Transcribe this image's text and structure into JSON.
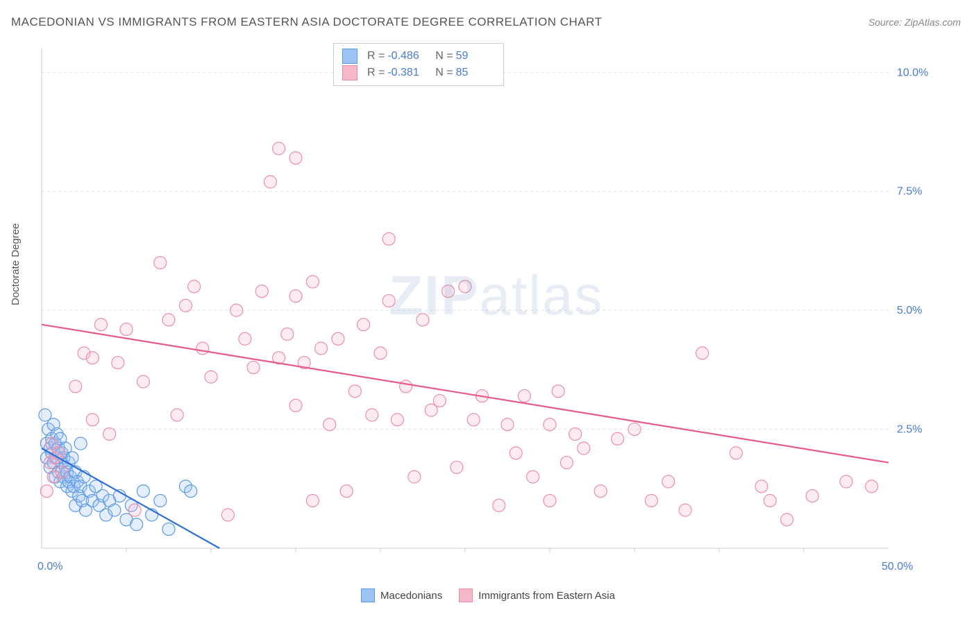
{
  "title": "MACEDONIAN VS IMMIGRANTS FROM EASTERN ASIA DOCTORATE DEGREE CORRELATION CHART",
  "source_label": "Source: ZipAtlas.com",
  "y_axis_label": "Doctorate Degree",
  "watermark": "ZIPatlas",
  "chart": {
    "type": "scatter",
    "xlim": [
      0,
      50
    ],
    "ylim": [
      0,
      10.5
    ],
    "y_ticks": [
      2.5,
      5.0,
      7.5,
      10.0
    ],
    "y_tick_labels": [
      "2.5%",
      "5.0%",
      "7.5%",
      "10.0%"
    ],
    "x_corner_labels": [
      "0.0%",
      "50.0%"
    ],
    "background_color": "#ffffff",
    "grid_color": "#e0e0e0",
    "grid_dash": "4,4",
    "axis_color": "#cccccc",
    "tick_label_color": "#4a7bd0",
    "x_tick_positions": [
      5,
      10,
      15,
      20,
      25,
      30,
      35,
      40,
      45
    ],
    "marker_radius": 9,
    "marker_stroke_width": 1.2,
    "marker_fill_opacity": 0.28,
    "trend_line_width": 2.2
  },
  "series": [
    {
      "name": "Macedonians",
      "color_fill": "#9dc3f5",
      "color_stroke": "#5a9ae6",
      "trend_color": "#2e6fd6",
      "R": "-0.486",
      "N": "59",
      "trend": {
        "x1": 0,
        "y1": 2.1,
        "x2": 10.5,
        "y2": 0
      },
      "points": [
        [
          0.2,
          2.8
        ],
        [
          0.3,
          2.2
        ],
        [
          0.3,
          1.9
        ],
        [
          0.4,
          2.5
        ],
        [
          0.5,
          2.1
        ],
        [
          0.5,
          1.7
        ],
        [
          0.6,
          2.3
        ],
        [
          0.6,
          2.0
        ],
        [
          0.7,
          2.6
        ],
        [
          0.7,
          1.8
        ],
        [
          0.8,
          2.2
        ],
        [
          0.8,
          1.5
        ],
        [
          0.9,
          2.4
        ],
        [
          0.9,
          1.9
        ],
        [
          1.0,
          2.1
        ],
        [
          1.0,
          1.6
        ],
        [
          1.1,
          2.3
        ],
        [
          1.1,
          1.4
        ],
        [
          1.2,
          1.8
        ],
        [
          1.2,
          2.0
        ],
        [
          1.3,
          1.9
        ],
        [
          1.3,
          1.5
        ],
        [
          1.4,
          2.1
        ],
        [
          1.4,
          1.7
        ],
        [
          1.5,
          1.6
        ],
        [
          1.5,
          1.3
        ],
        [
          1.6,
          1.8
        ],
        [
          1.6,
          1.4
        ],
        [
          1.7,
          1.5
        ],
        [
          1.8,
          1.2
        ],
        [
          1.8,
          1.9
        ],
        [
          1.9,
          1.3
        ],
        [
          2.0,
          1.6
        ],
        [
          2.0,
          0.9
        ],
        [
          2.1,
          1.4
        ],
        [
          2.2,
          1.1
        ],
        [
          2.3,
          1.3
        ],
        [
          2.4,
          1.0
        ],
        [
          2.5,
          1.5
        ],
        [
          2.6,
          0.8
        ],
        [
          2.8,
          1.2
        ],
        [
          3.0,
          1.0
        ],
        [
          3.2,
          1.3
        ],
        [
          3.4,
          0.9
        ],
        [
          3.6,
          1.1
        ],
        [
          3.8,
          0.7
        ],
        [
          4.0,
          1.0
        ],
        [
          4.3,
          0.8
        ],
        [
          4.6,
          1.1
        ],
        [
          5.0,
          0.6
        ],
        [
          5.3,
          0.9
        ],
        [
          5.6,
          0.5
        ],
        [
          6.0,
          1.2
        ],
        [
          6.5,
          0.7
        ],
        [
          7.0,
          1.0
        ],
        [
          7.5,
          0.4
        ],
        [
          8.5,
          1.3
        ],
        [
          8.8,
          1.2
        ],
        [
          2.3,
          2.2
        ]
      ]
    },
    {
      "name": "Immigrants from Eastern Asia",
      "color_fill": "#f5b8c9",
      "color_stroke": "#ea8fa9",
      "trend_color": "#e85a88",
      "R": "-0.381",
      "N": "85",
      "trend": {
        "x1": 0,
        "y1": 4.7,
        "x2": 50,
        "y2": 1.8
      },
      "points": [
        [
          0.3,
          1.2
        ],
        [
          0.5,
          1.8
        ],
        [
          0.6,
          2.2
        ],
        [
          0.7,
          1.5
        ],
        [
          0.8,
          1.9
        ],
        [
          1.0,
          2.0
        ],
        [
          1.2,
          1.6
        ],
        [
          2.0,
          3.4
        ],
        [
          2.5,
          4.1
        ],
        [
          3.0,
          2.7
        ],
        [
          3.0,
          4.0
        ],
        [
          3.5,
          4.7
        ],
        [
          4.0,
          2.4
        ],
        [
          4.5,
          3.9
        ],
        [
          5.0,
          4.6
        ],
        [
          5.5,
          0.8
        ],
        [
          6.0,
          3.5
        ],
        [
          7.0,
          6.0
        ],
        [
          7.5,
          4.8
        ],
        [
          8.0,
          2.8
        ],
        [
          8.5,
          5.1
        ],
        [
          9.0,
          5.5
        ],
        [
          9.5,
          4.2
        ],
        [
          10.0,
          3.6
        ],
        [
          11.0,
          0.7
        ],
        [
          11.5,
          5.0
        ],
        [
          12.0,
          4.4
        ],
        [
          12.5,
          3.8
        ],
        [
          13.0,
          5.4
        ],
        [
          13.5,
          7.7
        ],
        [
          14.0,
          4.0
        ],
        [
          14.0,
          8.4
        ],
        [
          14.5,
          4.5
        ],
        [
          15.0,
          3.0
        ],
        [
          15.0,
          5.3
        ],
        [
          15.0,
          8.2
        ],
        [
          15.5,
          3.9
        ],
        [
          16.0,
          1.0
        ],
        [
          16.0,
          5.6
        ],
        [
          16.5,
          4.2
        ],
        [
          17.0,
          2.6
        ],
        [
          17.5,
          4.4
        ],
        [
          18.0,
          1.2
        ],
        [
          18.5,
          3.3
        ],
        [
          19.0,
          4.7
        ],
        [
          19.5,
          2.8
        ],
        [
          20.0,
          4.1
        ],
        [
          20.5,
          5.2
        ],
        [
          20.5,
          6.5
        ],
        [
          21.0,
          2.7
        ],
        [
          21.5,
          3.4
        ],
        [
          22.0,
          1.5
        ],
        [
          22.5,
          4.8
        ],
        [
          23.0,
          2.9
        ],
        [
          23.5,
          3.1
        ],
        [
          24.0,
          5.4
        ],
        [
          24.5,
          1.7
        ],
        [
          25.0,
          5.5
        ],
        [
          25.5,
          2.7
        ],
        [
          26.0,
          3.2
        ],
        [
          27.0,
          0.9
        ],
        [
          27.5,
          2.6
        ],
        [
          28.0,
          2.0
        ],
        [
          28.5,
          3.2
        ],
        [
          29.0,
          1.5
        ],
        [
          30.0,
          2.6
        ],
        [
          30.5,
          3.3
        ],
        [
          31.0,
          1.8
        ],
        [
          31.5,
          2.4
        ],
        [
          32.0,
          2.1
        ],
        [
          33.0,
          1.2
        ],
        [
          34.0,
          2.3
        ],
        [
          35.0,
          2.5
        ],
        [
          36.0,
          1.0
        ],
        [
          37.0,
          1.4
        ],
        [
          38.0,
          0.8
        ],
        [
          39.0,
          4.1
        ],
        [
          41.0,
          2.0
        ],
        [
          42.5,
          1.3
        ],
        [
          44.0,
          0.6
        ],
        [
          45.5,
          1.1
        ],
        [
          47.5,
          1.4
        ],
        [
          49.0,
          1.3
        ],
        [
          43.0,
          1.0
        ],
        [
          30.0,
          1.0
        ]
      ]
    }
  ],
  "bottom_legend": [
    {
      "label": "Macedonians",
      "fill": "#9dc3f5",
      "stroke": "#5a9ae6"
    },
    {
      "label": "Immigrants from Eastern Asia",
      "fill": "#f5b8c9",
      "stroke": "#ea8fa9"
    }
  ]
}
